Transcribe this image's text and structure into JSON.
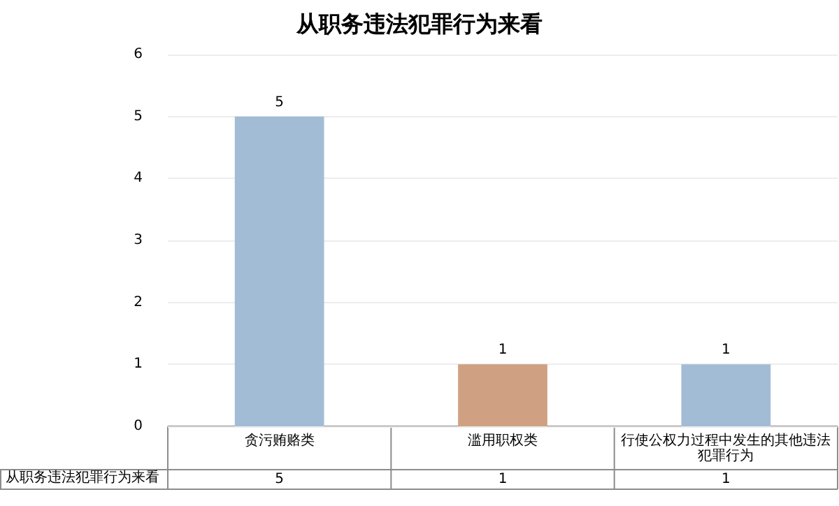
{
  "chart_data": {
    "type": "bar",
    "title": "从职务违法犯罪行为来看",
    "categories": [
      "贪污贿赂类",
      "滥用职权类",
      "行使公权力过程中发生的其他违法犯罪行为"
    ],
    "series": [
      {
        "name": "从职务违法犯罪行为来看",
        "colors": [
          "#a3bcd6",
          "#cfa182",
          "#a3bcd6"
        ],
        "values": [
          5,
          1,
          1
        ],
        "value_labels": [
          "5",
          "1",
          "1"
        ]
      }
    ],
    "annotations": [
      "5",
      "1",
      "1"
    ],
    "ylim": [
      0,
      6
    ],
    "yticks": [
      0,
      1,
      2,
      3,
      4,
      5,
      6
    ],
    "grid": "y",
    "data_labels": true,
    "legend": false
  }
}
